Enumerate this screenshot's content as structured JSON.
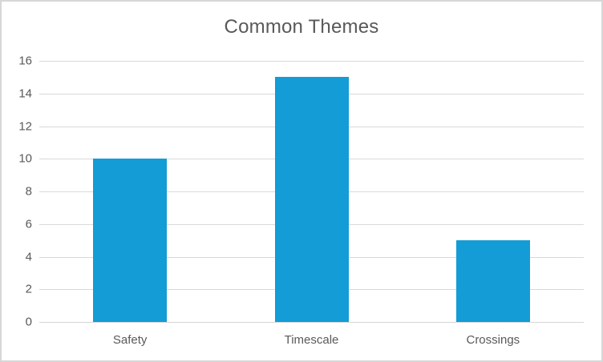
{
  "chart_data": {
    "type": "bar",
    "title": "Common Themes",
    "categories": [
      "Safety",
      "Timescale",
      "Crossings"
    ],
    "values": [
      10,
      15,
      5
    ],
    "xlabel": "",
    "ylabel": "",
    "ylim": [
      0,
      16
    ],
    "ytick_step": 2,
    "yticks": [
      0,
      2,
      4,
      6,
      8,
      10,
      12,
      14,
      16
    ],
    "grid": "horizontal",
    "legend": "none",
    "colors": {
      "bar": "#139CD6",
      "gridline": "#D9D9D9",
      "axis_line": "#D6D6D6",
      "text": "#595959",
      "chart_border": "#D7D7D7",
      "background": "#FFFFFF"
    }
  }
}
